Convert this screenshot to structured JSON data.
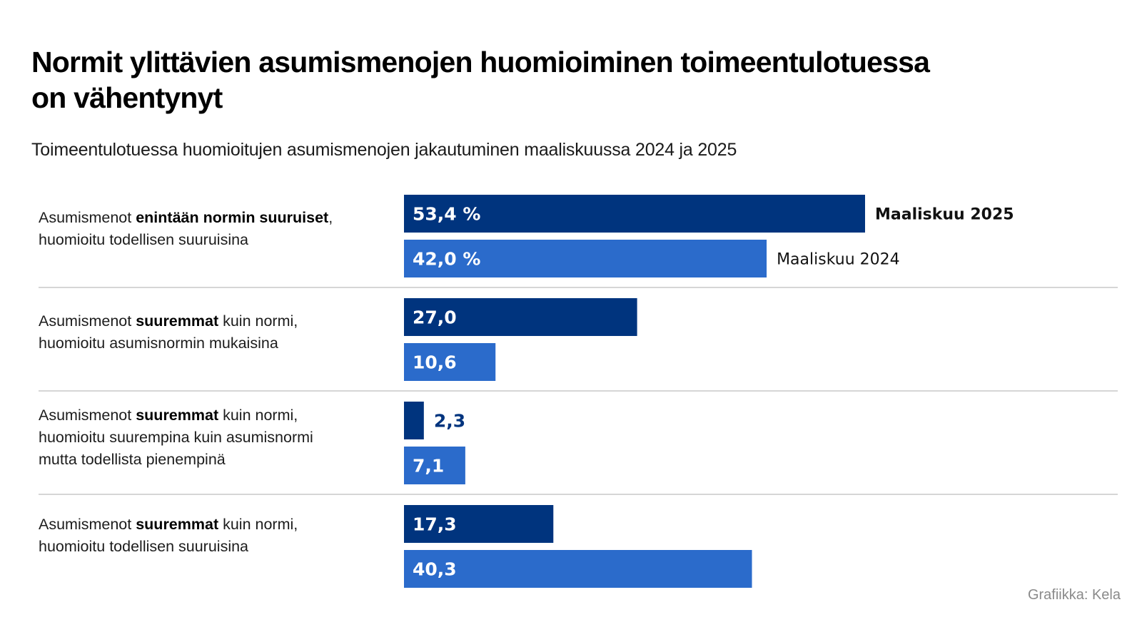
{
  "title_line1": "Normit ylittävien asumismenojen huomioiminen toimeentulotuessa",
  "title_line2": "on vähentynyt",
  "subtitle": "Toimeentulotuessa huomioitujen asumismenojen jakautuminen maaliskuussa 2024 ja 2025",
  "credit": "Grafiikka: Kela",
  "colors": {
    "series_2025": "#00347e",
    "series_2024": "#2b6bcb",
    "divider": "#c8c8c8"
  },
  "labels": [
    {
      "pre": "Asumismenot ",
      "bold": "enintään normin suuruiset",
      "post": ",",
      "lines": [
        "huomioitu todellisen suuruisina"
      ]
    },
    {
      "pre": "Asumismenot ",
      "bold": "suuremmat",
      "post": " kuin normi,",
      "lines": [
        "huomioitu asumisnormin mukaisina"
      ]
    },
    {
      "pre": "Asumismenot ",
      "bold": "suuremmat",
      "post": " kuin normi,",
      "lines": [
        "huomioitu suurempina kuin asumisnormi",
        "mutta todellista pienempinä"
      ]
    },
    {
      "pre": "Asumismenot ",
      "bold": "suuremmat",
      "post": " kuin normi,",
      "lines": [
        "huomioitu todellisen suuruisina"
      ]
    }
  ],
  "chart_data": {
    "type": "bar",
    "orientation": "horizontal",
    "title": "Normit ylittävien asumismenojen huomioiminen toimeentulotuessa on vähentynyt",
    "subtitle": "Toimeentulotuessa huomioitujen asumismenojen jakautuminen maaliskuussa 2024 ja 2025",
    "unit": "%",
    "categories": [
      "Asumismenot enintään normin suuruiset, huomioitu todellisen suuruisina",
      "Asumismenot suuremmat kuin normi, huomioitu asumisnormin mukaisina",
      "Asumismenot suuremmat kuin normi, huomioitu suurempina kuin asumisnormi mutta todellista pienempinä",
      "Asumismenot suuremmat kuin normi, huomioitu todellisen suuruisina"
    ],
    "series": [
      {
        "name": "Maaliskuu 2025",
        "values": [
          53.4,
          27.0,
          2.3,
          17.3
        ],
        "data_labels": [
          "53,4 %",
          "27,0",
          "2,3",
          "17,3"
        ]
      },
      {
        "name": "Maaliskuu 2024",
        "values": [
          42.0,
          10.6,
          7.1,
          40.3
        ],
        "data_labels": [
          "42,0 %",
          "10,6",
          "7,1",
          "40,3"
        ]
      }
    ],
    "xlim": [
      0,
      100
    ],
    "legend": "direct labels next to first category bars"
  }
}
